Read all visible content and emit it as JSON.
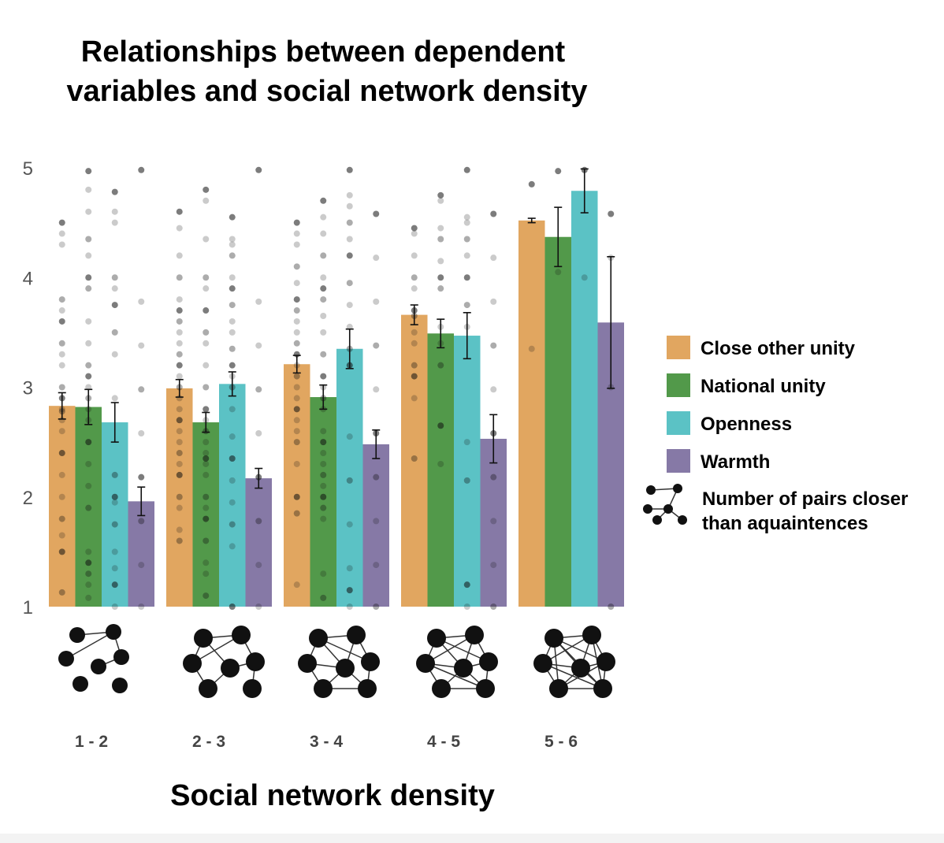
{
  "chart_data": {
    "type": "bar",
    "title_lines": [
      "Relationships between dependent",
      "variables and social network density"
    ],
    "xlabel": "Social network density",
    "ylabel": "",
    "ylim": [
      1,
      5
    ],
    "yticks": [
      "1",
      "2",
      "3",
      "4",
      "5"
    ],
    "categories": [
      "1 - 2",
      "2 - 3",
      "3 - 4",
      "4 - 5",
      "5 - 6"
    ],
    "series": [
      {
        "name": "Close other unity",
        "color": "#E1A660",
        "values": [
          2.83,
          2.99,
          3.21,
          3.66,
          4.52
        ],
        "error": [
          0.12,
          0.08,
          0.08,
          0.09,
          0.02
        ],
        "points": [
          [
            4.5,
            4.4,
            4.3,
            3.8,
            3.7,
            3.6,
            3.4,
            3.3,
            3.2,
            3.0,
            2.9,
            2.8,
            2.78,
            2.7,
            2.6,
            2.4,
            2.2,
            2.0,
            1.8,
            1.65,
            1.5,
            1.13
          ],
          [
            4.6,
            4.45,
            4.2,
            4.0,
            3.8,
            3.7,
            3.6,
            3.5,
            3.4,
            3.3,
            3.2,
            3.1,
            3.0,
            2.9,
            2.8,
            2.7,
            2.6,
            2.5,
            2.4,
            2.3,
            2.2,
            2.0,
            1.9,
            1.7,
            1.6
          ],
          [
            4.5,
            4.4,
            4.3,
            4.1,
            3.95,
            3.8,
            3.7,
            3.6,
            3.5,
            3.4,
            3.3,
            3.2,
            3.1,
            3.0,
            2.9,
            2.8,
            2.7,
            2.6,
            2.5,
            2.3,
            2.0,
            1.85,
            1.2
          ],
          [
            4.45,
            4.4,
            4.2,
            4.0,
            3.9,
            3.7,
            3.65,
            3.5,
            3.4,
            3.2,
            3.1,
            2.9,
            2.35
          ],
          [
            4.85,
            3.35
          ]
        ]
      },
      {
        "name": "National unity",
        "color": "#52994A",
        "values": [
          2.82,
          2.68,
          2.91,
          3.49,
          4.37
        ],
        "error": [
          0.16,
          0.09,
          0.11,
          0.13,
          0.27
        ],
        "points": [
          [
            4.97,
            4.8,
            4.6,
            4.35,
            4.2,
            4.0,
            3.9,
            3.6,
            3.4,
            3.2,
            3.1,
            3.0,
            2.9,
            2.8,
            2.7,
            2.5,
            2.3,
            2.1,
            1.9,
            1.5,
            1.4,
            1.3,
            1.2,
            1.08
          ],
          [
            4.8,
            4.7,
            4.35,
            4.0,
            3.9,
            3.7,
            3.5,
            3.4,
            3.2,
            3.0,
            2.8,
            2.7,
            2.6,
            2.5,
            2.4,
            2.35,
            2.3,
            2.2,
            2.0,
            1.9,
            1.8,
            1.6,
            1.4,
            1.3,
            1.1
          ],
          [
            4.7,
            4.55,
            4.4,
            4.2,
            4.0,
            3.9,
            3.8,
            3.65,
            3.5,
            3.3,
            3.1,
            3.0,
            2.9,
            2.8,
            2.6,
            2.5,
            2.4,
            2.3,
            2.2,
            2.1,
            2.0,
            1.9,
            1.8,
            1.3,
            1.08
          ],
          [
            4.75,
            4.7,
            4.45,
            4.35,
            4.15,
            4.0,
            3.9,
            3.55,
            3.4,
            3.2,
            2.65,
            2.3
          ],
          [
            4.97,
            4.05
          ]
        ]
      },
      {
        "name": "Openness",
        "color": "#5BC2C5",
        "values": [
          2.68,
          3.03,
          3.35,
          3.47,
          4.79
        ],
        "error": [
          0.18,
          0.11,
          0.18,
          0.21,
          0.2
        ],
        "points": [
          [
            4.78,
            4.6,
            4.5,
            4.0,
            3.9,
            3.75,
            3.5,
            3.3,
            2.9,
            2.2,
            2.0,
            1.95,
            1.75,
            1.5,
            1.35,
            1.2,
            1.0
          ],
          [
            4.55,
            4.35,
            4.3,
            4.2,
            4.0,
            3.9,
            3.75,
            3.6,
            3.5,
            3.35,
            3.2,
            3.1,
            3.0,
            2.8,
            2.55,
            2.35,
            2.15,
            1.95,
            1.75,
            1.55,
            1.0
          ],
          [
            4.98,
            4.75,
            4.65,
            4.5,
            4.35,
            4.2,
            3.95,
            3.75,
            3.55,
            3.35,
            3.2,
            2.55,
            2.15,
            1.75,
            1.35,
            1.15,
            1.0
          ],
          [
            4.98,
            4.55,
            4.5,
            4.35,
            4.2,
            4.0,
            3.75,
            3.55,
            2.5,
            2.15,
            1.2,
            1.0
          ],
          [
            4.98,
            4.0
          ]
        ]
      },
      {
        "name": "Warmth",
        "color": "#8679A6",
        "values": [
          1.96,
          2.17,
          2.48,
          2.53,
          3.59
        ],
        "error": [
          0.13,
          0.09,
          0.13,
          0.22,
          0.6
        ],
        "points": [
          [
            4.98,
            3.78,
            3.38,
            2.98,
            2.58,
            2.18,
            1.78,
            1.38,
            1.0
          ],
          [
            4.98,
            3.78,
            3.38,
            2.98,
            2.58,
            2.18,
            1.78,
            1.38,
            1.0
          ],
          [
            4.58,
            4.18,
            3.78,
            3.38,
            2.98,
            2.58,
            2.18,
            1.78,
            1.38,
            1.0
          ],
          [
            4.58,
            4.18,
            3.78,
            3.38,
            2.98,
            2.58,
            2.18,
            1.78,
            1.38,
            1.0
          ],
          [
            4.58,
            4.18,
            3.0,
            1.0
          ]
        ]
      }
    ],
    "network_legend_lines": [
      "Number of pairs closer",
      "than aquaintences"
    ],
    "network_pair_counts": [
      1.5,
      2.5,
      3.5,
      4.5,
      5.5
    ],
    "grid": false,
    "legend_position": "right"
  }
}
